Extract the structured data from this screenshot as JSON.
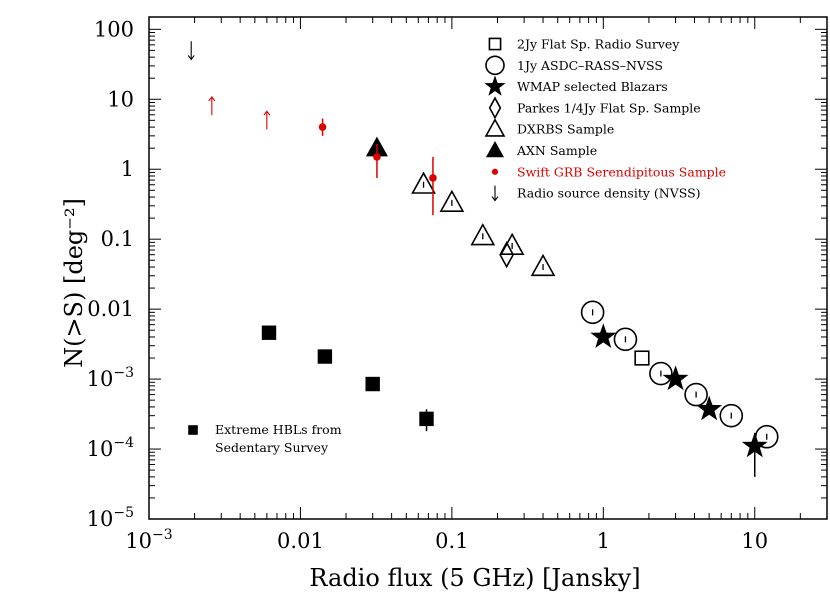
{
  "chart_data": {
    "type": "scatter",
    "title": "",
    "xlabel": "Radio flux (5 GHz) [Jansky]",
    "ylabel": "N(>S) [deg⁻²]",
    "xscale": "log",
    "yscale": "log",
    "xlim": [
      0.001,
      30
    ],
    "ylim": [
      1e-05,
      150
    ],
    "x_ticks": [
      {
        "value": 0.001,
        "base": "10",
        "exp": "−3"
      },
      {
        "value": 0.01,
        "text": "0.01"
      },
      {
        "value": 0.1,
        "text": "0.1"
      },
      {
        "value": 1,
        "text": "1"
      },
      {
        "value": 10,
        "text": "10"
      }
    ],
    "y_ticks": [
      {
        "value": 1e-05,
        "base": "10",
        "exp": "−5"
      },
      {
        "value": 0.0001,
        "base": "10",
        "exp": "−4"
      },
      {
        "value": 0.001,
        "base": "10",
        "exp": "−3"
      },
      {
        "value": 0.01,
        "text": "0.01"
      },
      {
        "value": 0.1,
        "text": "0.1"
      },
      {
        "value": 1,
        "text": "1"
      },
      {
        "value": 10,
        "text": "10"
      },
      {
        "value": 100,
        "text": "100"
      }
    ],
    "legend_position": "top-right",
    "series": [
      {
        "name": "2Jy Flat Sp. Radio Survey",
        "marker": "open-square",
        "color": "#000000",
        "points": [
          {
            "x": 1.8,
            "y": 0.002
          }
        ]
      },
      {
        "name": "1Jy ASDC–RASS–NVSS",
        "marker": "open-circle",
        "color": "#000000",
        "points": [
          {
            "x": 0.85,
            "y": 0.009
          },
          {
            "x": 1.4,
            "y": 0.0037
          },
          {
            "x": 2.4,
            "y": 0.0012
          },
          {
            "x": 4.1,
            "y": 0.0006
          },
          {
            "x": 7.0,
            "y": 0.0003
          },
          {
            "x": 12.0,
            "y": 0.00015
          }
        ]
      },
      {
        "name": "WMAP selected Blazars",
        "marker": "filled-star",
        "color": "#000000",
        "points": [
          {
            "x": 1.0,
            "y": 0.004
          },
          {
            "x": 3.0,
            "y": 0.001
          },
          {
            "x": 5.0,
            "y": 0.00037
          },
          {
            "x": 10.0,
            "y": 0.00011,
            "err_low": 4e-05,
            "err_high": 0.00017
          }
        ]
      },
      {
        "name": "Parkes 1/4Jy Flat Sp. Sample",
        "marker": "open-diamond",
        "color": "#000000",
        "points": [
          {
            "x": 0.23,
            "y": 0.06
          }
        ]
      },
      {
        "name": "DXRBS Sample",
        "marker": "open-triangle",
        "color": "#000000",
        "points": [
          {
            "x": 0.065,
            "y": 0.6
          },
          {
            "x": 0.1,
            "y": 0.33
          },
          {
            "x": 0.16,
            "y": 0.11
          },
          {
            "x": 0.25,
            "y": 0.08
          },
          {
            "x": 0.4,
            "y": 0.04
          }
        ]
      },
      {
        "name": "AXN Sample",
        "marker": "filled-triangle",
        "color": "#000000",
        "points": [
          {
            "x": 0.032,
            "y": 2.0
          }
        ]
      },
      {
        "name": "Swift GRB Serendipitous Sample",
        "marker": "filled-circle",
        "color": "#dd0000",
        "points": [
          {
            "x": 0.014,
            "y": 4.0,
            "err_low": 3.0,
            "err_high": 5.3
          },
          {
            "x": 0.032,
            "y": 1.5,
            "err_low": 0.75,
            "err_high": 2.3
          },
          {
            "x": 0.075,
            "y": 0.75,
            "err_low": 0.22,
            "err_high": 1.5
          }
        ]
      },
      {
        "name": "Swift GRB lower limits",
        "marker": "up-arrow",
        "color": "#dd0000",
        "in_legend": false,
        "points": [
          {
            "x": 0.0026,
            "y": 8.0
          },
          {
            "x": 0.006,
            "y": 5.0
          }
        ]
      },
      {
        "name": "Radio source density (NVSS)",
        "marker": "down-arrow",
        "color": "#000000",
        "points": [
          {
            "x": 0.0019,
            "y": 50.0
          }
        ]
      },
      {
        "name": "Extreme HBLs from Sedentary Survey",
        "marker": "filled-square",
        "color": "#000000",
        "points": [
          {
            "x": 0.0062,
            "y": 0.0046
          },
          {
            "x": 0.0145,
            "y": 0.0021
          },
          {
            "x": 0.03,
            "y": 0.00085
          },
          {
            "x": 0.068,
            "y": 0.00027,
            "err_low": 0.00018,
            "err_high": 0.00037
          }
        ]
      }
    ],
    "legend_entries": [
      {
        "label": "2Jy Flat Sp. Radio Survey",
        "marker": "open-square",
        "color": "#000000"
      },
      {
        "label": "1Jy ASDC–RASS–NVSS",
        "marker": "open-circle",
        "color": "#000000"
      },
      {
        "label": "WMAP selected Blazars",
        "marker": "filled-star",
        "color": "#000000"
      },
      {
        "label": "Parkes 1/4Jy Flat Sp. Sample",
        "marker": "open-diamond",
        "color": "#000000"
      },
      {
        "label": "DXRBS Sample",
        "marker": "open-triangle",
        "color": "#000000"
      },
      {
        "label": "AXN Sample",
        "marker": "filled-triangle",
        "color": "#000000"
      },
      {
        "label": "Swift GRB Serendipitous Sample",
        "marker": "filled-circle",
        "color": "#dd0000"
      },
      {
        "label": "Radio source density (NVSS)",
        "marker": "down-arrow",
        "color": "#000000"
      }
    ],
    "hbl_label": [
      "Extreme HBLs from",
      "Sedentary Survey"
    ]
  }
}
